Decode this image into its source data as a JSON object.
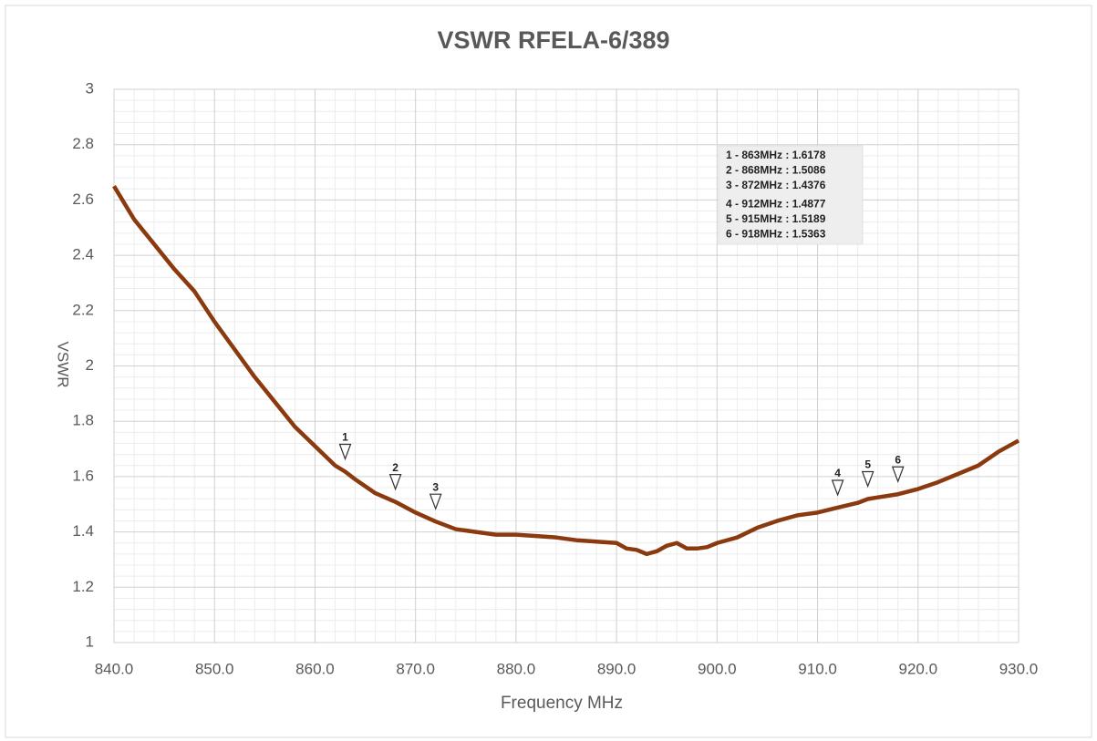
{
  "chart_data": {
    "type": "line",
    "title": "VSWR RFELA-6/389",
    "x_label": "Frequency MHz",
    "y_label": "VSWR",
    "series": [
      {
        "name": "VSWR",
        "color": "#8b3a0f",
        "x": [
          840,
          842,
          844,
          846,
          848,
          850,
          852,
          854,
          856,
          858,
          860,
          862,
          863,
          864,
          866,
          868,
          870,
          872,
          874,
          876,
          878,
          880,
          882,
          884,
          886,
          888,
          890,
          891,
          892,
          893,
          894,
          895,
          896,
          897,
          898,
          899,
          900,
          902,
          904,
          906,
          908,
          910,
          912,
          914,
          915,
          916,
          918,
          920,
          922,
          924,
          926,
          928,
          930
        ],
        "values": [
          2.65,
          2.53,
          2.44,
          2.35,
          2.27,
          2.16,
          2.06,
          1.96,
          1.87,
          1.78,
          1.71,
          1.64,
          1.6178,
          1.59,
          1.54,
          1.5086,
          1.47,
          1.4376,
          1.41,
          1.4,
          1.39,
          1.39,
          1.385,
          1.38,
          1.37,
          1.365,
          1.36,
          1.34,
          1.335,
          1.32,
          1.33,
          1.35,
          1.36,
          1.34,
          1.34,
          1.345,
          1.36,
          1.38,
          1.415,
          1.44,
          1.46,
          1.47,
          1.4877,
          1.505,
          1.5189,
          1.525,
          1.5363,
          1.555,
          1.58,
          1.61,
          1.64,
          1.69,
          1.73
        ]
      }
    ],
    "markers": [
      {
        "label": "1",
        "x": 863,
        "y": 1.6178
      },
      {
        "label": "2",
        "x": 868,
        "y": 1.5086
      },
      {
        "label": "3",
        "x": 872,
        "y": 1.4376
      },
      {
        "label": "4",
        "x": 912,
        "y": 1.4877
      },
      {
        "label": "5",
        "x": 915,
        "y": 1.5189
      },
      {
        "label": "6",
        "x": 918,
        "y": 1.5363
      }
    ],
    "annotations": [
      "1 - 863MHz : 1.6178",
      "2 - 868MHz : 1.5086",
      "3 - 872MHz : 1.4376",
      "4 - 912MHz : 1.4877",
      "5 - 915MHz : 1.5189",
      "6 - 918MHz : 1.5363"
    ],
    "xlim": [
      840,
      930
    ],
    "xticks": [
      {
        "value": 840,
        "label": "840.0"
      },
      {
        "value": 850,
        "label": "850.0"
      },
      {
        "value": 860,
        "label": "860.0"
      },
      {
        "value": 870,
        "label": "870.0"
      },
      {
        "value": 880,
        "label": "880.0"
      },
      {
        "value": 890,
        "label": "890.0"
      },
      {
        "value": 900,
        "label": "900.0"
      },
      {
        "value": 910,
        "label": "910.0"
      },
      {
        "value": 920,
        "label": "920.0"
      },
      {
        "value": 930,
        "label": "930.0"
      }
    ],
    "ylim": [
      1,
      3
    ],
    "yticks": [
      1,
      1.2,
      1.4,
      1.6,
      1.8,
      2,
      2.2,
      2.4,
      2.6,
      2.8,
      3
    ],
    "grid": true,
    "minor_grid": true
  }
}
